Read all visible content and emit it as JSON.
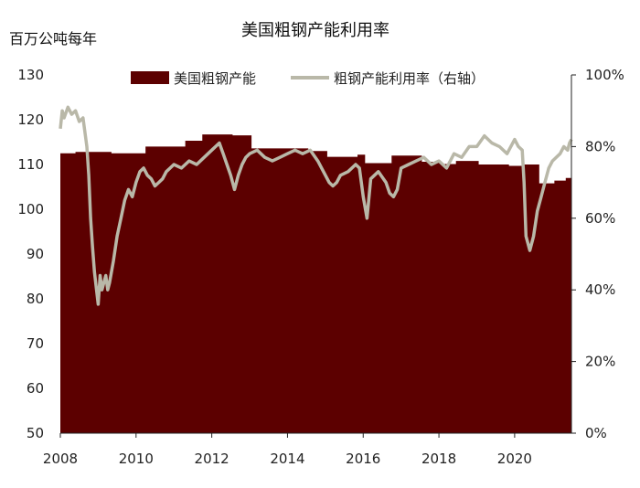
{
  "chart_data": {
    "type": "area+line",
    "title": "美国粗钢产能利用率",
    "ylabel_left": "百万公吨每年",
    "ylim_left": [
      50,
      130
    ],
    "yticks_left": [
      "50",
      "60",
      "70",
      "80",
      "90",
      "100",
      "110",
      "120",
      "130"
    ],
    "ylim_right": [
      0,
      100
    ],
    "yticks_right": [
      "0%",
      "20%",
      "40%",
      "60%",
      "80%",
      "100%"
    ],
    "xlim": [
      2008,
      2021.5
    ],
    "xticks": [
      "2008",
      "2010",
      "2012",
      "2014",
      "2016",
      "2018",
      "2020"
    ],
    "legend_position": "top",
    "colors": {
      "capacity": "#5c0000",
      "utilization": "#b9b8a8"
    },
    "series": [
      {
        "name": "美国粗钢产能",
        "axis": "left",
        "kind": "area-step",
        "x": [
          2008.0,
          2008.35,
          2008.4,
          2009.3,
          2009.35,
          2010.2,
          2010.25,
          2011.2,
          2011.3,
          2011.7,
          2011.75,
          2012.5,
          2012.55,
          2013.0,
          2013.05,
          2014.5,
          2014.55,
          2015.0,
          2015.05,
          2015.8,
          2015.85,
          2016.0,
          2016.05,
          2016.7,
          2016.75,
          2017.5,
          2017.55,
          2018.0,
          2018.05,
          2018.4,
          2018.45,
          2019.0,
          2019.05,
          2019.8,
          2019.85,
          2020.2,
          2020.25,
          2020.6,
          2020.65,
          2021.0,
          2021.05,
          2021.3,
          2021.35,
          2021.5
        ],
        "values": [
          112.5,
          112.5,
          112.8,
          112.8,
          112.5,
          112.5,
          114.0,
          114.0,
          115.3,
          115.3,
          116.7,
          116.7,
          116.5,
          116.5,
          113.6,
          113.6,
          113.0,
          113.0,
          111.7,
          111.7,
          112.2,
          112.2,
          110.3,
          110.3,
          112.0,
          112.0,
          110.6,
          110.6,
          110.1,
          110.1,
          110.8,
          110.8,
          110.0,
          110.0,
          109.7,
          109.7,
          110.0,
          110.0,
          105.8,
          105.8,
          106.4,
          106.4,
          107.0,
          105.0
        ]
      },
      {
        "name": "粗钢产能利用率（右轴）",
        "axis": "right",
        "kind": "line",
        "x": [
          2008.0,
          2008.05,
          2008.1,
          2008.2,
          2008.3,
          2008.4,
          2008.5,
          2008.6,
          2008.7,
          2008.75,
          2008.8,
          2008.85,
          2008.9,
          2009.0,
          2009.05,
          2009.1,
          2009.15,
          2009.2,
          2009.25,
          2009.3,
          2009.4,
          2009.5,
          2009.6,
          2009.7,
          2009.8,
          2009.9,
          2010.0,
          2010.1,
          2010.2,
          2010.3,
          2010.4,
          2010.5,
          2010.6,
          2010.7,
          2010.8,
          2010.9,
          2011.0,
          2011.2,
          2011.4,
          2011.6,
          2011.8,
          2012.0,
          2012.2,
          2012.3,
          2012.4,
          2012.5,
          2012.6,
          2012.7,
          2012.8,
          2012.9,
          2013.0,
          2013.2,
          2013.4,
          2013.6,
          2013.8,
          2014.0,
          2014.2,
          2014.4,
          2014.6,
          2014.8,
          2015.0,
          2015.1,
          2015.2,
          2015.3,
          2015.4,
          2015.6,
          2015.8,
          2015.9,
          2016.0,
          2016.1,
          2016.2,
          2016.4,
          2016.6,
          2016.7,
          2016.8,
          2016.9,
          2017.0,
          2017.2,
          2017.4,
          2017.6,
          2017.8,
          2018.0,
          2018.2,
          2018.4,
          2018.6,
          2018.8,
          2019.0,
          2019.2,
          2019.4,
          2019.6,
          2019.8,
          2020.0,
          2020.1,
          2020.2,
          2020.25,
          2020.3,
          2020.4,
          2020.5,
          2020.6,
          2020.7,
          2020.8,
          2020.9,
          2021.0,
          2021.2,
          2021.3,
          2021.4,
          2021.45,
          2021.5
        ],
        "values": [
          85,
          90,
          88,
          91,
          89,
          90,
          87,
          88,
          80,
          72,
          60,
          52,
          45,
          36,
          44,
          40,
          42,
          44,
          40,
          42,
          48,
          55,
          60,
          65,
          68,
          66,
          70,
          73,
          74,
          72,
          71,
          69,
          70,
          71,
          73,
          74,
          75,
          74,
          76,
          75,
          77,
          79,
          81,
          78,
          75,
          72,
          68,
          72,
          75,
          77,
          78,
          79,
          77,
          76,
          77,
          78,
          79,
          78,
          79,
          76,
          72,
          70,
          69,
          70,
          72,
          73,
          75,
          74,
          66,
          60,
          71,
          73,
          70,
          67,
          66,
          68,
          74,
          75,
          76,
          77,
          75,
          76,
          74,
          78,
          77,
          80,
          80,
          83,
          81,
          80,
          78,
          82,
          80,
          79,
          70,
          55,
          51,
          55,
          62,
          66,
          70,
          74,
          76,
          78,
          80,
          79,
          81,
          82
        ]
      }
    ]
  }
}
